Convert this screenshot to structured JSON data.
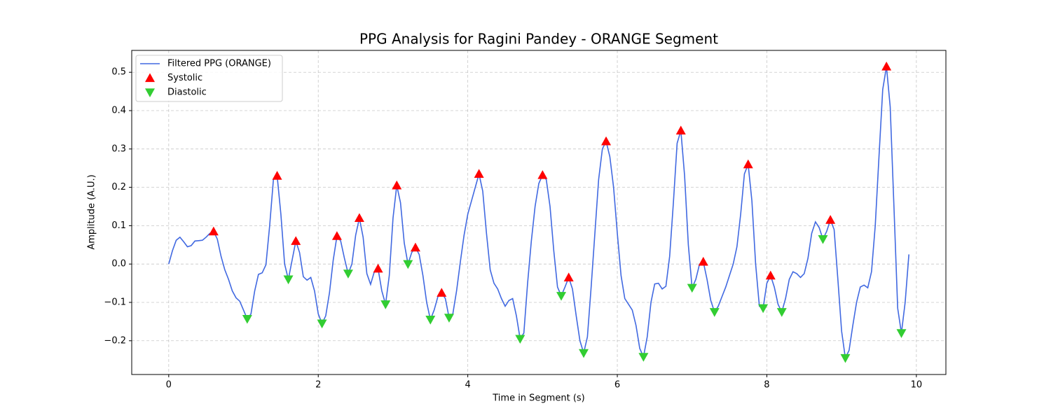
{
  "chart_data": {
    "type": "line",
    "title": "PPG Analysis for Ragini Pandey - ORANGE Segment",
    "xlabel": "Time in Segment (s)",
    "ylabel": "Amplitude (A.U.)",
    "xlim": [
      -0.495,
      10.395
    ],
    "ylim": [
      -0.288,
      0.557
    ],
    "xticks": [
      0,
      2,
      4,
      6,
      8,
      10
    ],
    "yticks": [
      {
        "value": -0.2,
        "label": "−0.2"
      },
      {
        "value": -0.1,
        "label": "−0.1"
      },
      {
        "value": 0,
        "label": "0.0"
      },
      0.1,
      0.2,
      0.3,
      0.4,
      0.5
    ],
    "grid": true,
    "legend": "upper left",
    "series": [
      {
        "name": "Filtered PPG (ORANGE)",
        "color": "#4169e1",
        "marker": "line",
        "x": [
          0,
          0.05,
          0.1,
          0.15,
          0.2,
          0.25,
          0.3,
          0.35,
          0.4,
          0.45,
          0.5,
          0.55,
          0.6,
          0.65,
          0.7,
          0.75,
          0.8,
          0.85,
          0.9,
          0.95,
          1.0,
          1.05,
          1.1,
          1.15,
          1.2,
          1.25,
          1.3,
          1.35,
          1.4,
          1.45,
          1.5,
          1.55,
          1.6,
          1.65,
          1.7,
          1.75,
          1.8,
          1.85,
          1.9,
          1.95,
          2.0,
          2.05,
          2.1,
          2.15,
          2.2,
          2.25,
          2.3,
          2.35,
          2.4,
          2.45,
          2.5,
          2.55,
          2.6,
          2.65,
          2.7,
          2.75,
          2.8,
          2.85,
          2.9,
          2.95,
          3.0,
          3.05,
          3.1,
          3.15,
          3.2,
          3.25,
          3.3,
          3.35,
          3.4,
          3.45,
          3.5,
          3.55,
          3.6,
          3.65,
          3.7,
          3.75,
          3.8,
          3.85,
          3.9,
          3.95,
          4.0,
          4.05,
          4.1,
          4.15,
          4.2,
          4.25,
          4.3,
          4.35,
          4.4,
          4.45,
          4.5,
          4.55,
          4.6,
          4.65,
          4.7,
          4.75,
          4.8,
          4.85,
          4.9,
          4.95,
          5.0,
          5.05,
          5.1,
          5.15,
          5.2,
          5.25,
          5.3,
          5.35,
          5.4,
          5.45,
          5.5,
          5.55,
          5.6,
          5.65,
          5.7,
          5.75,
          5.8,
          5.85,
          5.9,
          5.95,
          6.0,
          6.05,
          6.1,
          6.15,
          6.2,
          6.25,
          6.3,
          6.35,
          6.4,
          6.45,
          6.5,
          6.55,
          6.6,
          6.65,
          6.7,
          6.75,
          6.8,
          6.85,
          6.9,
          6.95,
          7.0,
          7.05,
          7.1,
          7.15,
          7.2,
          7.25,
          7.3,
          7.35,
          7.4,
          7.45,
          7.5,
          7.55,
          7.6,
          7.65,
          7.7,
          7.75,
          7.8,
          7.85,
          7.9,
          7.95,
          8.0,
          8.05,
          8.1,
          8.15,
          8.2,
          8.25,
          8.3,
          8.35,
          8.4,
          8.45,
          8.5,
          8.55,
          8.6,
          8.65,
          8.7,
          8.75,
          8.8,
          8.85,
          8.9,
          8.95,
          9.0,
          9.05,
          9.1,
          9.15,
          9.2,
          9.25,
          9.3,
          9.35,
          9.4,
          9.45,
          9.5,
          9.55,
          9.6,
          9.65,
          9.7,
          9.75,
          9.8,
          9.85,
          9.9
        ],
        "values": [
          0.0,
          0.035,
          0.062,
          0.07,
          0.058,
          0.045,
          0.048,
          0.06,
          0.061,
          0.062,
          0.07,
          0.08,
          0.085,
          0.065,
          0.02,
          -0.015,
          -0.04,
          -0.07,
          -0.088,
          -0.097,
          -0.12,
          -0.143,
          -0.13,
          -0.07,
          -0.027,
          -0.023,
          -0.002,
          0.1,
          0.22,
          0.23,
          0.13,
          0.0,
          -0.04,
          0.01,
          0.06,
          0.03,
          -0.033,
          -0.042,
          -0.035,
          -0.07,
          -0.13,
          -0.155,
          -0.135,
          -0.075,
          0.01,
          0.073,
          0.06,
          0.015,
          -0.025,
          0.0,
          0.075,
          0.12,
          0.07,
          -0.025,
          -0.053,
          -0.02,
          -0.012,
          -0.07,
          -0.105,
          -0.03,
          0.12,
          0.205,
          0.16,
          0.055,
          0.0,
          0.03,
          0.043,
          0.025,
          -0.03,
          -0.1,
          -0.145,
          -0.12,
          -0.085,
          -0.075,
          -0.09,
          -0.14,
          -0.13,
          -0.07,
          0.005,
          0.075,
          0.13,
          0.165,
          0.2,
          0.235,
          0.19,
          0.08,
          -0.015,
          -0.05,
          -0.065,
          -0.09,
          -0.11,
          -0.095,
          -0.09,
          -0.135,
          -0.195,
          -0.18,
          -0.05,
          0.06,
          0.15,
          0.21,
          0.232,
          0.22,
          0.15,
          0.035,
          -0.06,
          -0.083,
          -0.06,
          -0.035,
          -0.065,
          -0.135,
          -0.2,
          -0.232,
          -0.19,
          -0.06,
          0.08,
          0.22,
          0.3,
          0.32,
          0.28,
          0.2,
          0.08,
          -0.03,
          -0.09,
          -0.105,
          -0.12,
          -0.16,
          -0.22,
          -0.242,
          -0.19,
          -0.1,
          -0.052,
          -0.05,
          -0.065,
          -0.058,
          0.02,
          0.16,
          0.315,
          0.348,
          0.23,
          0.05,
          -0.062,
          -0.04,
          0.0,
          0.006,
          -0.04,
          -0.095,
          -0.125,
          -0.11,
          -0.085,
          -0.06,
          -0.03,
          0.0,
          0.045,
          0.13,
          0.235,
          0.26,
          0.165,
          0.0,
          -0.11,
          -0.115,
          -0.05,
          -0.03,
          -0.06,
          -0.105,
          -0.125,
          -0.09,
          -0.04,
          -0.02,
          -0.025,
          -0.035,
          -0.025,
          0.015,
          0.08,
          0.11,
          0.095,
          0.065,
          0.085,
          0.115,
          0.09,
          -0.04,
          -0.175,
          -0.245,
          -0.225,
          -0.16,
          -0.1,
          -0.06,
          -0.055,
          -0.062,
          -0.02,
          0.1,
          0.28,
          0.455,
          0.515,
          0.41,
          0.15,
          -0.115,
          -0.18,
          -0.1,
          0.025
        ]
      },
      {
        "name": "Systolic",
        "color": "#ff0000",
        "marker": "triangle-up",
        "x": [
          0.6,
          1.45,
          1.7,
          2.25,
          2.55,
          2.8,
          3.05,
          3.3,
          3.65,
          4.15,
          5.0,
          5.35,
          5.85,
          6.85,
          7.15,
          7.75,
          8.05,
          8.85,
          9.6
        ],
        "values": [
          0.085,
          0.23,
          0.06,
          0.073,
          0.12,
          -0.012,
          0.205,
          0.043,
          -0.075,
          0.235,
          0.232,
          -0.035,
          0.32,
          0.348,
          0.006,
          0.26,
          -0.03,
          0.115,
          0.515
        ]
      },
      {
        "name": "Diastolic",
        "color": "#32cd32",
        "marker": "triangle-down",
        "x": [
          1.05,
          1.6,
          2.05,
          2.4,
          2.9,
          3.2,
          3.5,
          3.75,
          4.7,
          5.25,
          5.55,
          6.35,
          7.0,
          7.3,
          7.95,
          8.2,
          8.75,
          9.05,
          9.8
        ],
        "values": [
          -0.143,
          -0.04,
          -0.155,
          -0.025,
          -0.105,
          0.0,
          -0.145,
          -0.14,
          -0.195,
          -0.083,
          -0.232,
          -0.242,
          -0.062,
          -0.125,
          -0.115,
          -0.125,
          0.065,
          -0.245,
          -0.18
        ]
      }
    ]
  }
}
